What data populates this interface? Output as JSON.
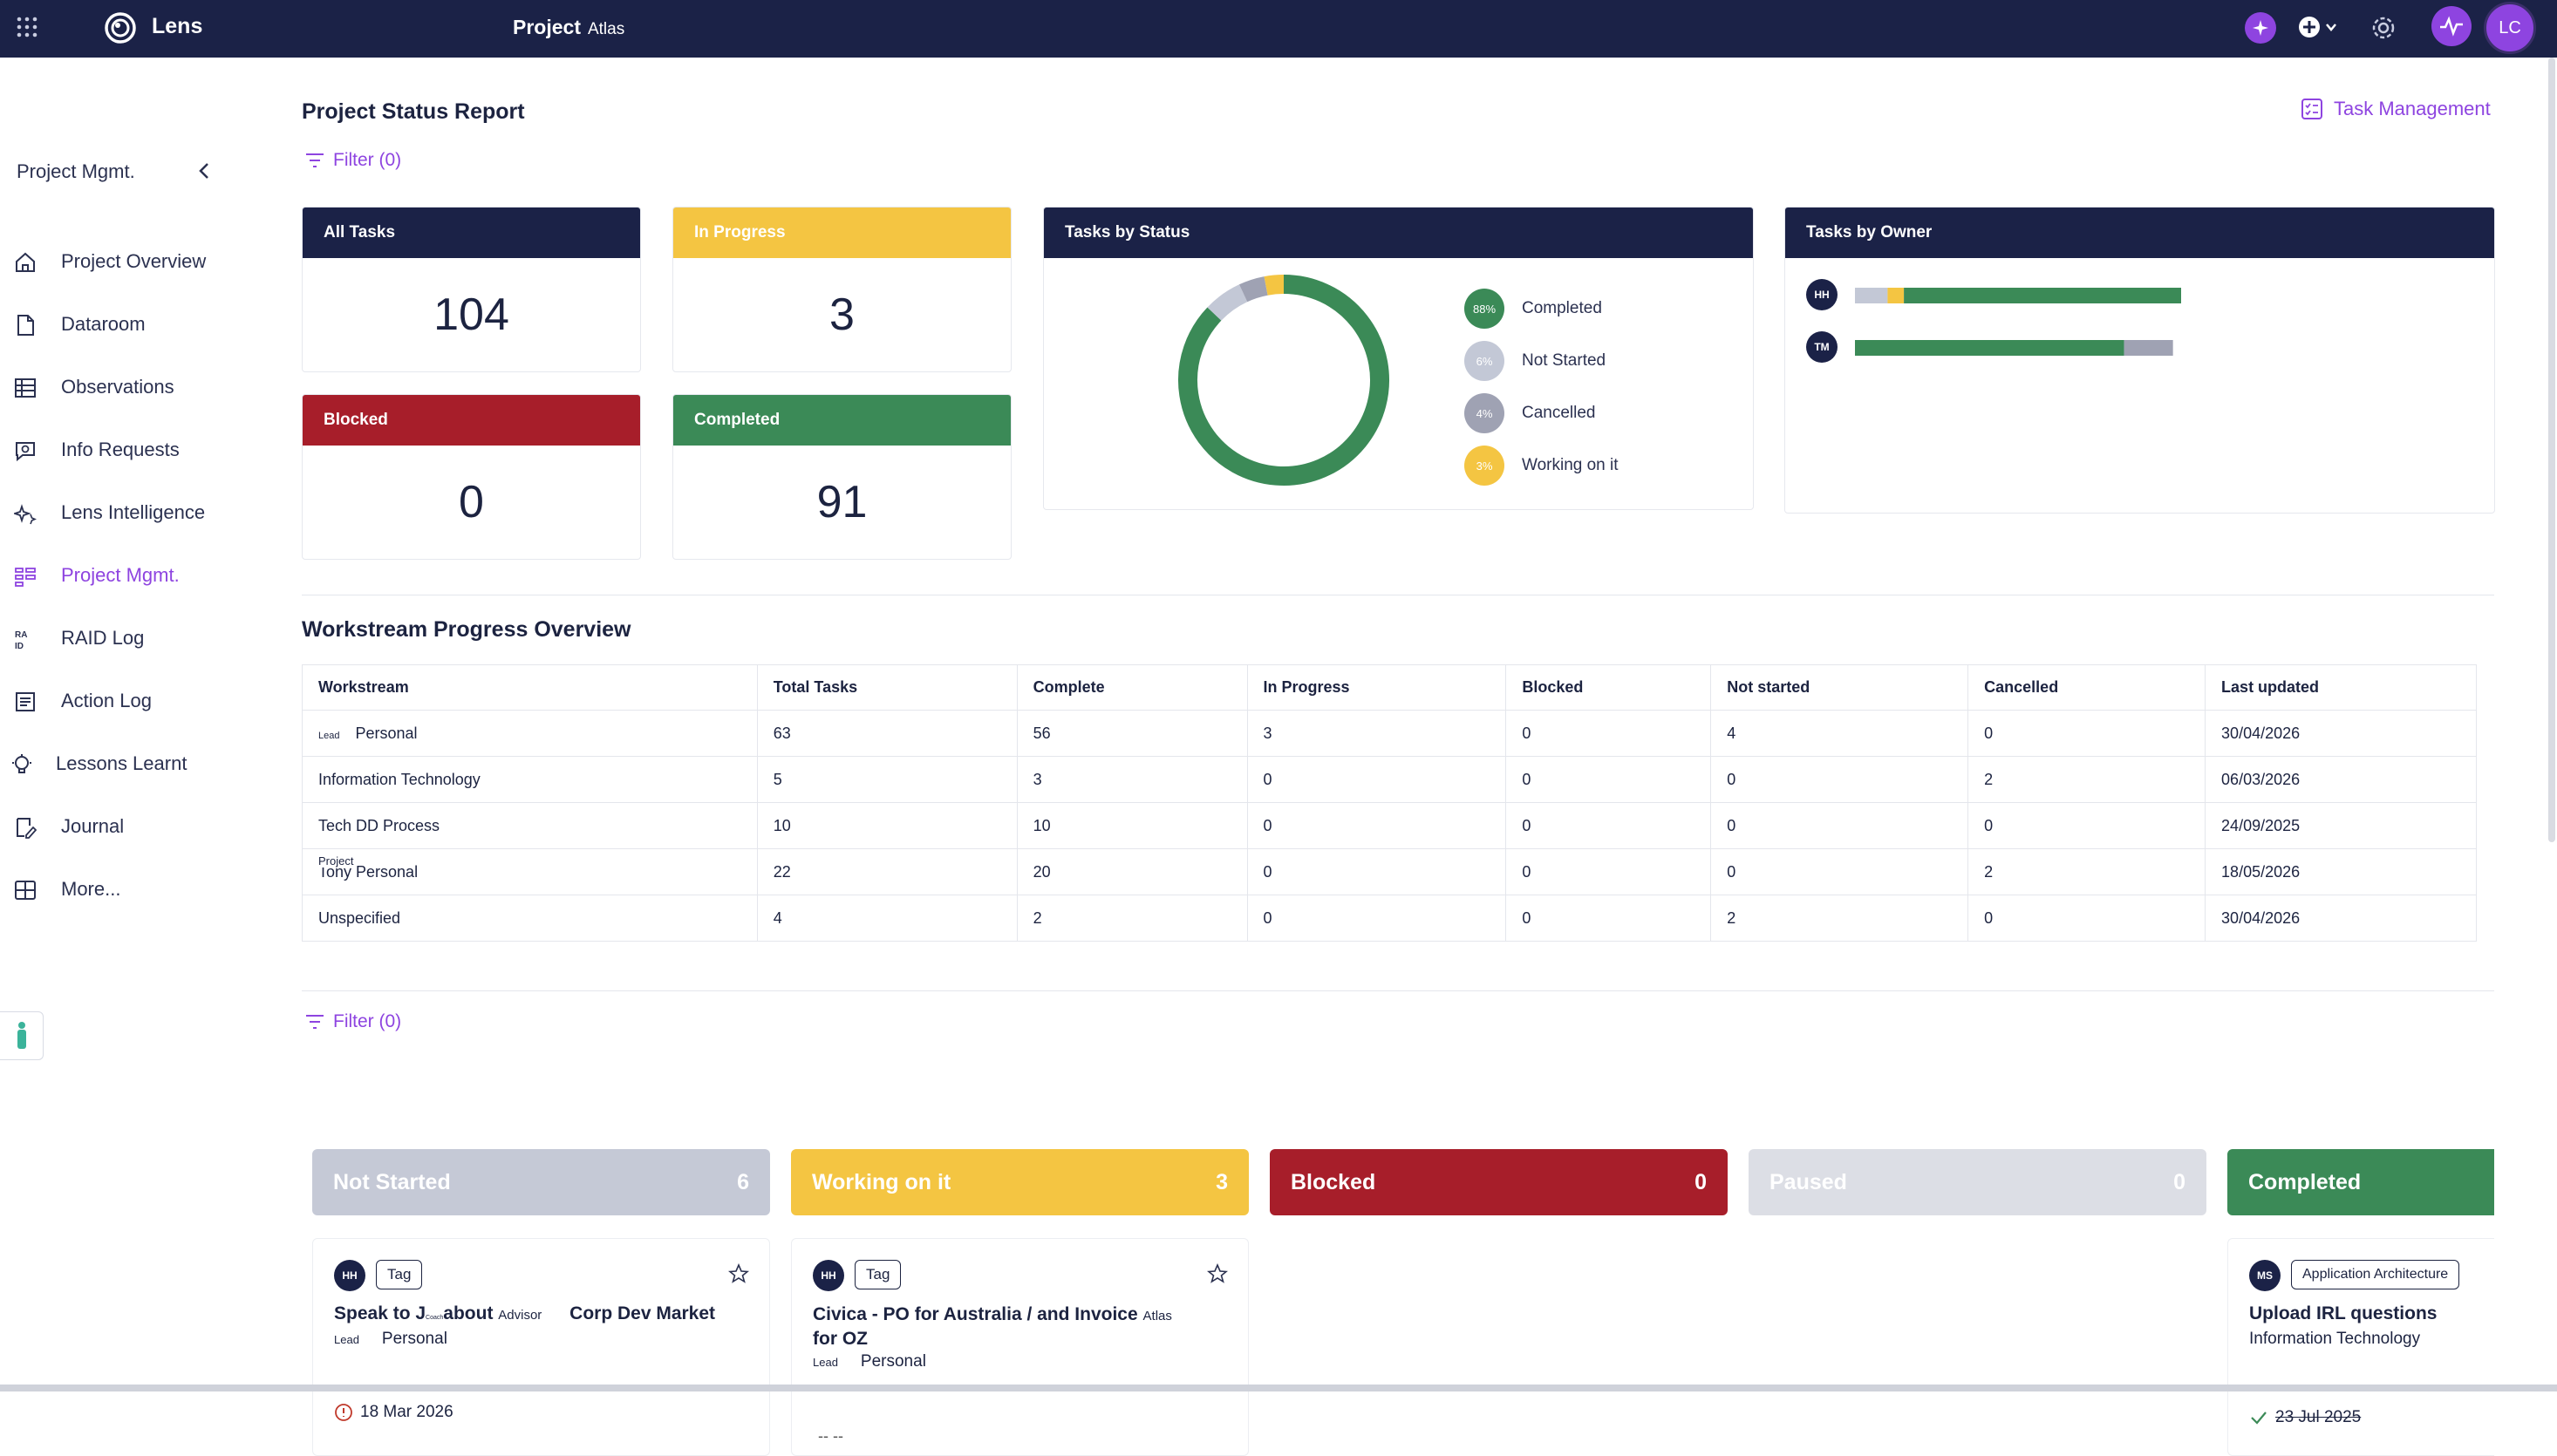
{
  "topbar": {
    "app_name": "Lens",
    "project_label": "Project",
    "project_name": "Atlas",
    "avatar_initials": "LC"
  },
  "sidebar": {
    "title": "Project Mgmt.",
    "items": [
      {
        "label": "Project Overview",
        "icon": "home-icon"
      },
      {
        "label": "Dataroom",
        "icon": "document-icon"
      },
      {
        "label": "Observations",
        "icon": "grid-icon"
      },
      {
        "label": "Info Requests",
        "icon": "chat-search-icon"
      },
      {
        "label": "Lens Intelligence",
        "icon": "sparkle-icon"
      },
      {
        "label": "Project Mgmt.",
        "icon": "kanban-icon",
        "active": true
      },
      {
        "label": "RAID Log",
        "icon": "raid-icon"
      },
      {
        "label": "Action Log",
        "icon": "list-icon"
      },
      {
        "label": "Lessons Learnt",
        "icon": "lightbulb-icon"
      },
      {
        "label": "Journal",
        "icon": "pencil-icon"
      },
      {
        "label": "More...",
        "icon": "apps-icon"
      }
    ]
  },
  "header": {
    "title": "Project Status Report",
    "filter_label": "Filter (0)",
    "task_management_label": "Task Management"
  },
  "stats": {
    "all_tasks": {
      "label": "All Tasks",
      "value": "104"
    },
    "in_progress": {
      "label": "In Progress",
      "value": "3"
    },
    "blocked": {
      "label": "Blocked",
      "value": "0"
    },
    "completed": {
      "label": "Completed",
      "value": "91"
    }
  },
  "tasks_by_status": {
    "title": "Tasks by Status",
    "legend": [
      {
        "pct": "88%",
        "label": "Completed"
      },
      {
        "pct": "6%",
        "label": "Not Started"
      },
      {
        "pct": "4%",
        "label": "Cancelled"
      },
      {
        "pct": "3%",
        "label": "Working on it"
      }
    ]
  },
  "tasks_by_owner": {
    "title": "Tasks by Owner",
    "owners": [
      "HH",
      "TM"
    ]
  },
  "chart_data": [
    {
      "type": "pie",
      "title": "Tasks by Status",
      "labels": [
        "Completed",
        "Not Started",
        "Cancelled",
        "Working on it"
      ],
      "values": [
        88,
        6,
        4,
        3
      ],
      "colors": [
        "#3b8a57",
        "#c3c8d6",
        "#9fa2b3",
        "#f4c542"
      ]
    },
    {
      "type": "bar",
      "title": "Tasks by Owner",
      "categories": [
        "HH",
        "TM"
      ],
      "series": [
        {
          "values": [
            4,
            0
          ],
          "color": "#c3c8d6"
        },
        {
          "values": [
            2,
            0
          ],
          "color": "#f4c542"
        },
        {
          "values": [
            34,
            33
          ],
          "color": "#3b8a57"
        },
        {
          "values": [
            0,
            6
          ],
          "color": "#9fa2b3"
        }
      ]
    }
  ],
  "workstream": {
    "title": "Workstream Progress Overview",
    "columns": [
      "Workstream",
      "Total Tasks",
      "Complete",
      "In Progress",
      "Blocked",
      "Not started",
      "Cancelled",
      "Last updated"
    ],
    "rows": [
      {
        "overlay": "Lead",
        "name": "Personal",
        "cells": [
          "63",
          "56",
          "3",
          "0",
          "4",
          "0",
          "30/04/2026"
        ]
      },
      {
        "overlay": "",
        "name": "Information Technology",
        "cells": [
          "5",
          "3",
          "0",
          "0",
          "0",
          "2",
          "06/03/2026"
        ]
      },
      {
        "overlay": "",
        "name": "Tech DD Process",
        "cells": [
          "10",
          "10",
          "0",
          "0",
          "0",
          "0",
          "24/09/2025"
        ]
      },
      {
        "overlay": "Project",
        "name": "Tony Personal",
        "cells": [
          "22",
          "20",
          "0",
          "0",
          "0",
          "2",
          "18/05/2026"
        ]
      },
      {
        "overlay": "",
        "name": "Unspecified",
        "cells": [
          "4",
          "2",
          "0",
          "0",
          "2",
          "0",
          "30/04/2026"
        ]
      }
    ]
  },
  "board": {
    "filter_label": "Filter (0)",
    "columns": [
      {
        "label": "Not Started",
        "count": "6",
        "color": "#c5c9d6"
      },
      {
        "label": "Working on it",
        "count": "3",
        "color": "#f4c542"
      },
      {
        "label": "Blocked",
        "count": "0",
        "color": "#a71e2a"
      },
      {
        "label": "Paused",
        "count": "0",
        "color": "#dcdee5"
      },
      {
        "label": "Completed",
        "count": "",
        "color": "#3b8a57"
      }
    ],
    "cards": [
      {
        "avatar": "HH",
        "tag": "Tag",
        "title_a": "Speak to J",
        "title_tiny": "Coach",
        "title_b": "about",
        "title_small": "Advisor",
        "title_c": "Corp Dev Market",
        "lead": "Lead",
        "owner": "Personal",
        "date": "18 Mar 2026"
      },
      {
        "avatar": "HH",
        "tag": "Tag",
        "title": "Civica - PO for Australia / and Invoice",
        "title_small": "Atlas",
        "title_2": "for OZ",
        "lead": "Lead",
        "owner": "Personal",
        "date": "-- --"
      },
      {
        "avatar": "MS",
        "tag": "Application Architecture",
        "title": "Upload IRL questions",
        "subtitle": "Information Technology",
        "date": "23 Jul 2025"
      }
    ]
  }
}
